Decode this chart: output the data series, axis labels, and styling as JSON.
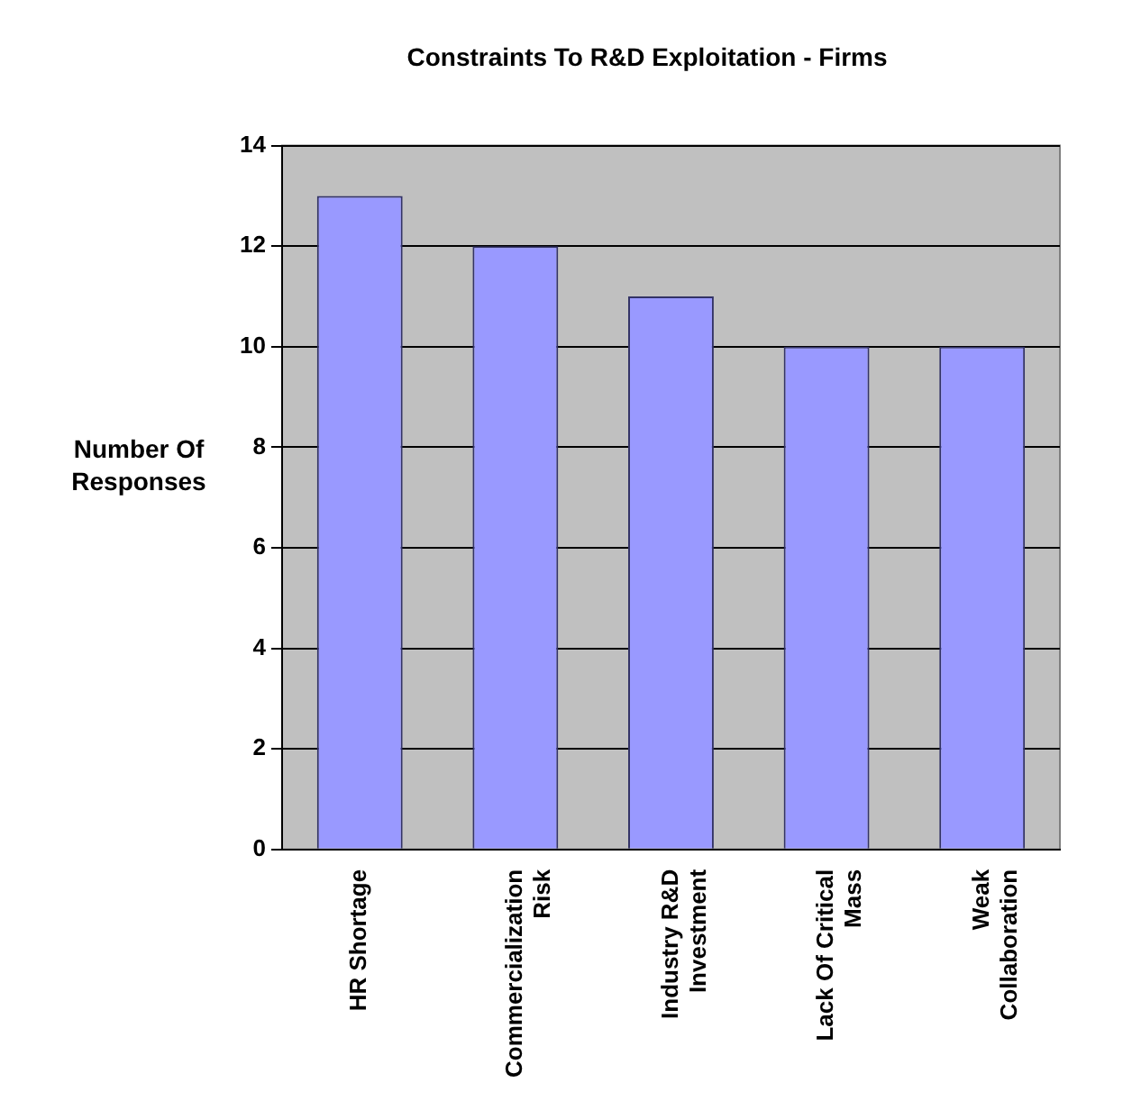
{
  "chart_data": {
    "type": "bar",
    "title": "Constraints To R&D Exploitation - Firms",
    "ylabel": "Number Of Responses",
    "categories": [
      "HR Shortage",
      "Commercialization Risk",
      "Industry R&D Investment",
      "Lack Of Critical Mass",
      "Weak Collaboration"
    ],
    "values": [
      13,
      12,
      11,
      10,
      10
    ],
    "color": "#9999ff",
    "ylim": [
      0,
      14
    ],
    "yticks": [
      0,
      2,
      4,
      6,
      8,
      10,
      12,
      14
    ],
    "grid": "y",
    "legend": false
  }
}
